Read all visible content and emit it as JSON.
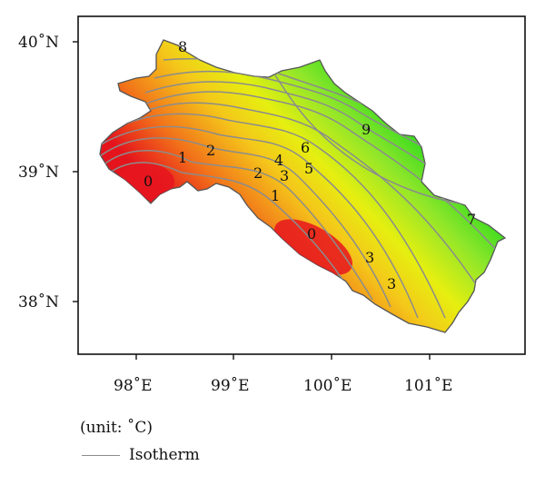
{
  "map": {
    "lat_labels": [
      "40˚N",
      "39˚N",
      "38˚N"
    ],
    "lon_labels": [
      "98˚E",
      "99˚E",
      "100˚E",
      "101˚E"
    ],
    "isotherm_labels": [
      "8",
      "9",
      "6",
      "4",
      "3",
      "5",
      "1",
      "2",
      "2",
      "0",
      "1",
      "0",
      "7",
      "3",
      "3"
    ],
    "colors": {
      "warm": "#e8101e",
      "mid": "#f2e600",
      "cool": "#2ed81c",
      "isotherm": "#8c8c8c"
    }
  },
  "legend": {
    "unit": "(unit: ˚C)",
    "isotherm": "Isotherm"
  }
}
